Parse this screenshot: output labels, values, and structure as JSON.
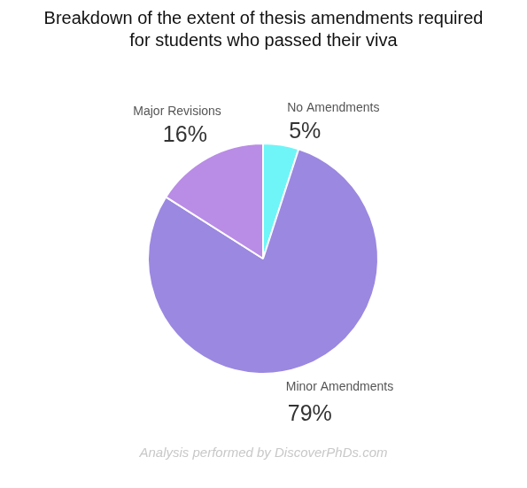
{
  "chart_data": {
    "type": "pie",
    "title": [
      "Breakdown of the extent of thesis amendments required",
      "for students who passed their viva"
    ],
    "categories": [
      "No Amendments",
      "Minor Amendments",
      "Major Revisions"
    ],
    "values": [
      5,
      79,
      16
    ],
    "value_labels": [
      "5%",
      "79%",
      "16%"
    ],
    "colors": [
      "#6ff5f8",
      "#9b88e0",
      "#b98ce6"
    ],
    "data_labels": true,
    "annotations": [
      "Analysis performed by DiscoverPhDs.com"
    ]
  }
}
